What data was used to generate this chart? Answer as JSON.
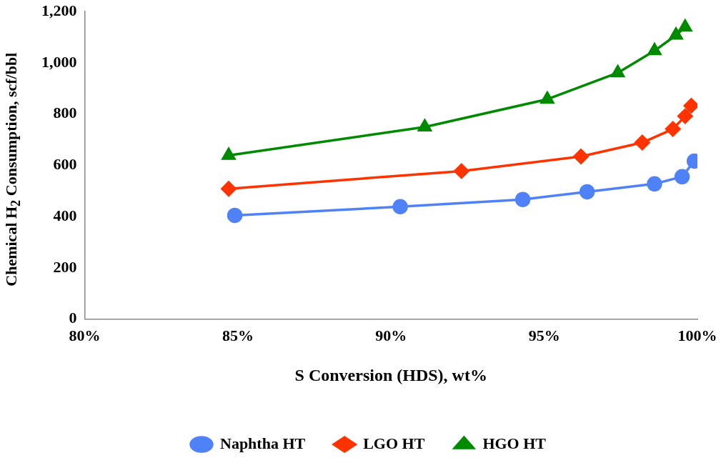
{
  "chart_data": {
    "type": "line",
    "xlabel": "S Conversion (HDS), wt%",
    "ylabel": "Chemical H$_{2}$ Consumption, scf/bbl",
    "xlim": [
      80,
      100
    ],
    "xticks": [
      {
        "value": 80,
        "label": "80%"
      },
      {
        "value": 85,
        "label": "85%"
      },
      {
        "value": 90,
        "label": "90%"
      },
      {
        "value": 95,
        "label": "95%"
      },
      {
        "value": 100,
        "label": "100%"
      }
    ],
    "ylim": [
      0,
      1200
    ],
    "yticks": [
      {
        "value": 0,
        "label": "0"
      },
      {
        "value": 200,
        "label": "200"
      },
      {
        "value": 400,
        "label": "400"
      },
      {
        "value": 600,
        "label": "600"
      },
      {
        "value": 800,
        "label": "800"
      },
      {
        "value": 1000,
        "label": "1,000"
      },
      {
        "value": 1200,
        "label": "1,200"
      }
    ],
    "grid": false,
    "legend": "bottom",
    "series": [
      {
        "name": "Naphtha HT",
        "color": "#4f81f7",
        "marker": "circle",
        "x": [
          84.9,
          90.3,
          94.3,
          96.4,
          98.6,
          99.5,
          99.9
        ],
        "values": [
          405,
          439,
          467,
          497,
          528,
          556,
          617
        ]
      },
      {
        "name": "LGO HT",
        "color": "#ff3300",
        "marker": "diamond",
        "x": [
          84.7,
          92.3,
          96.2,
          98.2,
          99.2,
          99.6,
          99.8
        ],
        "values": [
          509,
          578,
          635,
          689,
          742,
          792,
          833
        ]
      },
      {
        "name": "HGO HT",
        "color": "#008a00",
        "marker": "triangle",
        "x": [
          84.7,
          91.1,
          95.1,
          97.4,
          98.6,
          99.3,
          99.6
        ],
        "values": [
          639,
          750,
          858,
          961,
          1047,
          1108,
          1139
        ]
      }
    ]
  }
}
